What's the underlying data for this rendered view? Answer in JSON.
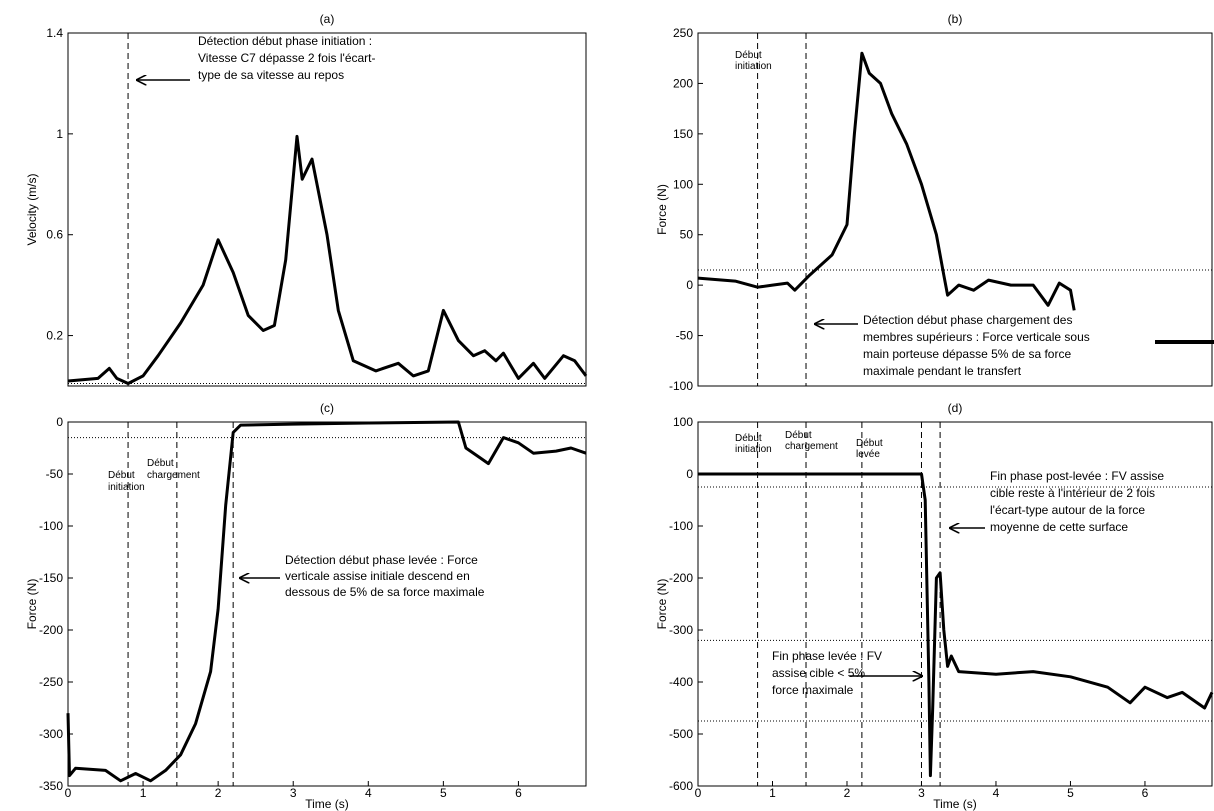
{
  "chart_data": [
    {
      "type": "line",
      "title": "(a)",
      "ylabel": "Velocity (m/s)",
      "xlim": [
        0,
        6.9
      ],
      "ylim": [
        0,
        1.4
      ],
      "yticks": [
        0.2,
        0.6,
        1,
        1.4
      ],
      "series": [
        {
          "color": "#000000",
          "x": [
            0,
            0.4,
            0.55,
            0.65,
            0.8,
            1.0,
            1.2,
            1.5,
            1.8,
            2.0,
            2.2,
            2.4,
            2.6,
            2.75,
            2.9,
            3.05,
            3.12,
            3.25,
            3.45,
            3.6,
            3.8,
            4.1,
            4.4,
            4.6,
            4.8,
            5.0,
            5.2,
            5.4,
            5.55,
            5.7,
            5.8,
            6.0,
            6.2,
            6.35,
            6.6,
            6.75,
            6.9
          ],
          "values": [
            0.02,
            0.03,
            0.07,
            0.03,
            0.01,
            0.04,
            0.12,
            0.25,
            0.4,
            0.58,
            0.45,
            0.28,
            0.22,
            0.24,
            0.5,
            0.99,
            0.82,
            0.9,
            0.6,
            0.3,
            0.1,
            0.06,
            0.09,
            0.04,
            0.06,
            0.3,
            0.18,
            0.12,
            0.14,
            0.1,
            0.13,
            0.03,
            0.09,
            0.03,
            0.12,
            0.1,
            0.04
          ]
        }
      ],
      "vlines": [
        0.8
      ],
      "hlines": [
        0.01
      ],
      "annotations": [
        [
          "Détection début phase initiation :",
          "Vitesse C7 dépasse 2 fois l'écart-",
          "type de sa vitesse au repos"
        ]
      ]
    },
    {
      "type": "line",
      "title": "(b)",
      "ylabel": "Force (N)",
      "xlim": [
        0,
        6.9
      ],
      "ylim": [
        -100,
        250
      ],
      "yticks": [
        -100,
        -50,
        0,
        50,
        100,
        150,
        200,
        250
      ],
      "series": [
        {
          "color": "#000000",
          "x": [
            0,
            0.5,
            0.8,
            1.0,
            1.2,
            1.3,
            1.5,
            1.8,
            2.0,
            2.1,
            2.2,
            2.3,
            2.45,
            2.6,
            2.8,
            3.0,
            3.2,
            3.3,
            3.35,
            3.5,
            3.7,
            3.9,
            4.2,
            4.5,
            4.7,
            4.85,
            5.0,
            5.05
          ],
          "values": [
            7,
            4,
            -2,
            0,
            2,
            -5,
            10,
            30,
            60,
            150,
            230,
            210,
            200,
            170,
            140,
            100,
            50,
            10,
            -10,
            0,
            -5,
            5,
            0,
            0,
            -20,
            2,
            -5,
            -25
          ]
        }
      ],
      "vlines": [
        0.8,
        1.45
      ],
      "hlines": [
        15
      ],
      "annotations": [
        [
          "Début",
          "initiation"
        ],
        [
          "Détection début phase chargement des",
          "membres supérieurs : Force verticale sous",
          "main porteuse dépasse 5% de sa force",
          "maximale pendant le transfert"
        ]
      ]
    },
    {
      "type": "line",
      "title": "(c)",
      "xlabel": "Time (s)",
      "ylabel": "Force (N)",
      "xlim": [
        0,
        6.9
      ],
      "ylim": [
        -350,
        0
      ],
      "xticks": [
        0,
        1,
        2,
        3,
        4,
        5,
        6
      ],
      "yticks": [
        -350,
        -300,
        -250,
        -200,
        -150,
        -100,
        -50,
        0
      ],
      "series": [
        {
          "color": "#000000",
          "x": [
            0,
            0.02,
            0.1,
            0.5,
            0.7,
            0.9,
            1.1,
            1.3,
            1.5,
            1.7,
            1.9,
            2.0,
            2.1,
            2.2,
            2.3,
            3,
            4,
            5.2,
            5.3,
            5.5,
            5.6,
            5.8,
            6.0,
            6.2,
            6.5,
            6.7,
            6.9
          ],
          "values": [
            -280,
            -340,
            -333,
            -335,
            -345,
            -338,
            -345,
            -335,
            -320,
            -290,
            -240,
            -180,
            -80,
            -10,
            -3,
            -2,
            -1,
            0,
            -25,
            -35,
            -40,
            -15,
            -20,
            -30,
            -28,
            -25,
            -30
          ]
        }
      ],
      "vlines": [
        0.8,
        1.45,
        2.2
      ],
      "hlines": [
        -15
      ],
      "annotations": [
        [
          "Début",
          "initiation"
        ],
        [
          "Début",
          "chargement"
        ],
        [
          "Détection début phase levée : Force",
          "verticale assise initiale descend en",
          "dessous de 5% de sa force maximale"
        ]
      ]
    },
    {
      "type": "line",
      "title": "(d)",
      "xlabel": "Time (s)",
      "ylabel": "Force (N)",
      "xlim": [
        0,
        6.9
      ],
      "ylim": [
        -600,
        100
      ],
      "xticks": [
        0,
        1,
        2,
        3,
        4,
        5,
        6
      ],
      "yticks": [
        -600,
        -500,
        -400,
        -300,
        -200,
        -100,
        0,
        100
      ],
      "series": [
        {
          "color": "#000000",
          "x": [
            0,
            3.0,
            3.05,
            3.1,
            3.12,
            3.15,
            3.2,
            3.25,
            3.3,
            3.35,
            3.4,
            3.5,
            4,
            4.5,
            5,
            5.5,
            5.8,
            6,
            6.3,
            6.5,
            6.8,
            6.9
          ],
          "values": [
            0,
            0,
            -50,
            -400,
            -580,
            -450,
            -200,
            -190,
            -300,
            -370,
            -350,
            -380,
            -385,
            -380,
            -390,
            -410,
            -440,
            -410,
            -430,
            -420,
            -450,
            -420
          ]
        }
      ],
      "vlines": [
        0.8,
        1.45,
        2.2,
        3.0,
        3.25
      ],
      "hlines": [
        -25,
        -320,
        -475
      ],
      "annotations": [
        [
          "Début",
          "initiation"
        ],
        [
          "Début",
          "chargement"
        ],
        [
          "Début",
          "levée"
        ],
        [
          "Fin phase post-levée : FV assise",
          "cible reste à l'intérieur de 2 fois",
          "l'écart-type autour de la force",
          "moyenne de cette surface"
        ],
        [
          "Fin phase levée : FV",
          "assise cible < 5%",
          "force maximale"
        ]
      ]
    }
  ]
}
